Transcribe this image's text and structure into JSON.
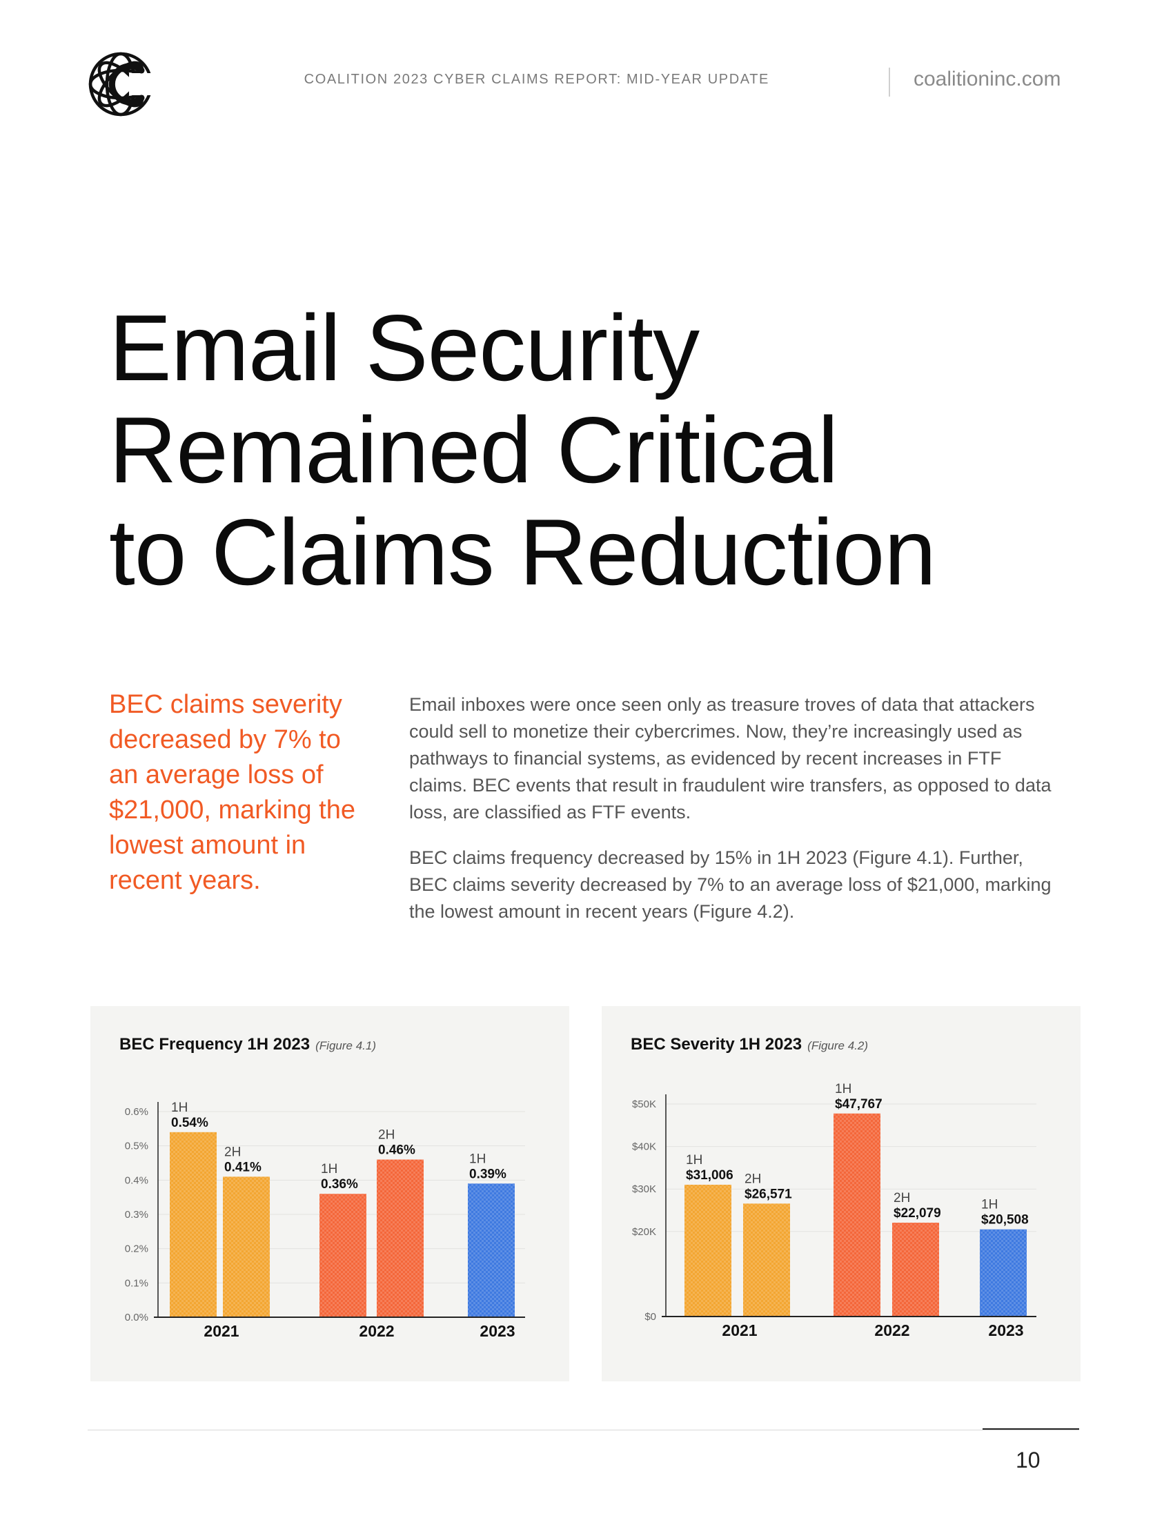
{
  "header": {
    "report_title": "COALITION 2023 CYBER CLAIMS REPORT: MID-YEAR UPDATE",
    "website": "coalitioninc.com",
    "logo": "coalition-logo-icon"
  },
  "title": {
    "line1": "Email Security",
    "line2": "Remained Critical",
    "line3": "to Claims Reduction"
  },
  "pull_quote": "BEC claims severity decreased by 7% to an average loss of $21,000, marking the lowest amount in recent years.",
  "body": {
    "paragraph1": "Email inboxes were once seen only as treasure troves of data that attackers could sell to monetize their cybercrimes. Now, they’re increasingly used as pathways to financial systems, as evidenced by recent increases in FTF claims. BEC events that result in fraudulent wire transfers, as opposed to data loss, are classified as FTF events.",
    "paragraph2": "BEC claims frequency decreased by 15% in 1H 2023 (Figure 4.1). Further, BEC claims severity decreased by 7% to an average loss of $21,000, marking the lowest amount in recent years (Figure 4.2)."
  },
  "chart_data": [
    {
      "type": "bar",
      "title": "BEC Frequency 1H 2023",
      "figure": "(Figure 4.1)",
      "categories": [
        "2021",
        "2022",
        "2023"
      ],
      "bars": [
        {
          "year": "2021",
          "half": "1H",
          "value": 0.54,
          "label": "0.54%",
          "color": "#f3a632"
        },
        {
          "year": "2021",
          "half": "2H",
          "value": 0.41,
          "label": "0.41%",
          "color": "#f3a632"
        },
        {
          "year": "2022",
          "half": "1H",
          "value": 0.36,
          "label": "0.36%",
          "color": "#f4673a"
        },
        {
          "year": "2022",
          "half": "2H",
          "value": 0.46,
          "label": "0.46%",
          "color": "#f4673a"
        },
        {
          "year": "2023",
          "half": "1H",
          "value": 0.39,
          "label": "0.39%",
          "color": "#3f7ae0"
        }
      ],
      "yticks": [
        "0.0%",
        "0.1%",
        "0.2%",
        "0.3%",
        "0.4%",
        "0.5%",
        "0.6%"
      ],
      "ylim": [
        0,
        0.6
      ],
      "grid": true
    },
    {
      "type": "bar",
      "title": "BEC Severity 1H 2023",
      "figure": "(Figure 4.2)",
      "categories": [
        "2021",
        "2022",
        "2023"
      ],
      "bars": [
        {
          "year": "2021",
          "half": "1H",
          "value": 31006,
          "label": "$31,006",
          "color": "#f3a632"
        },
        {
          "year": "2021",
          "half": "2H",
          "value": 26571,
          "label": "$26,571",
          "color": "#f3a632"
        },
        {
          "year": "2022",
          "half": "1H",
          "value": 47767,
          "label": "$47,767",
          "color": "#f4673a"
        },
        {
          "year": "2022",
          "half": "2H",
          "value": 22079,
          "label": "$22,079",
          "color": "#f4673a"
        },
        {
          "year": "2023",
          "half": "1H",
          "value": 20508,
          "label": "$20,508",
          "color": "#3f7ae0"
        }
      ],
      "yticks": [
        "$0",
        "$20K",
        "$30K",
        "$40K",
        "$50K"
      ],
      "ylim": [
        0,
        50000
      ],
      "grid": true
    }
  ],
  "footer": {
    "page_number": "10"
  }
}
